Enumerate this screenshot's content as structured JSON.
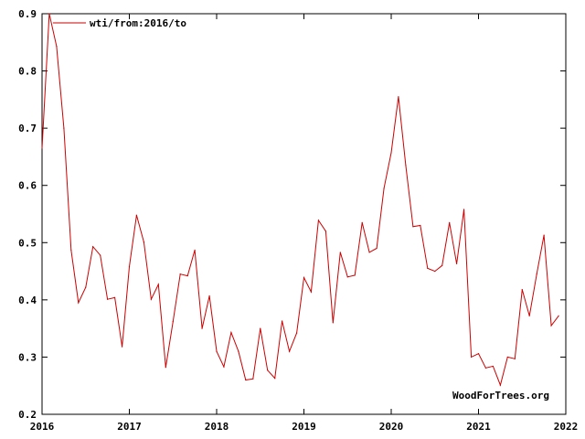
{
  "chart_data": {
    "type": "line",
    "title": "",
    "xlabel": "",
    "ylabel": "",
    "xlim": [
      2016,
      2022
    ],
    "ylim": [
      0.2,
      0.9
    ],
    "x_ticks": [
      "2016",
      "2017",
      "2018",
      "2019",
      "2020",
      "2021",
      "2022"
    ],
    "y_ticks": [
      "0.2",
      "0.3",
      "0.4",
      "0.5",
      "0.6",
      "0.7",
      "0.8",
      "0.9"
    ],
    "legend_position": "top-left",
    "grid": false,
    "credit": "WoodForTrees.org",
    "series": [
      {
        "name": "wti/from:2016/to",
        "color": "#cc0000",
        "x": [
          2016.0,
          2016.083,
          2016.167,
          2016.25,
          2016.333,
          2016.417,
          2016.5,
          2016.583,
          2016.667,
          2016.75,
          2016.833,
          2016.917,
          2017.0,
          2017.083,
          2017.167,
          2017.25,
          2017.333,
          2017.417,
          2017.5,
          2017.583,
          2017.667,
          2017.75,
          2017.833,
          2017.917,
          2018.0,
          2018.083,
          2018.167,
          2018.25,
          2018.333,
          2018.417,
          2018.5,
          2018.583,
          2018.667,
          2018.75,
          2018.833,
          2018.917,
          2019.0,
          2019.083,
          2019.167,
          2019.25,
          2019.333,
          2019.417,
          2019.5,
          2019.583,
          2019.667,
          2019.75,
          2019.833,
          2019.917,
          2020.0,
          2020.083,
          2020.167,
          2020.25,
          2020.333,
          2020.417,
          2020.5,
          2020.583,
          2020.667,
          2020.75,
          2020.833,
          2020.917,
          2021.0,
          2021.083,
          2021.167,
          2021.25,
          2021.333,
          2021.417,
          2021.5,
          2021.583,
          2021.667,
          2021.75,
          2021.833,
          2021.917
        ],
        "y": [
          0.665,
          0.9,
          0.843,
          0.7,
          0.487,
          0.395,
          0.422,
          0.493,
          0.478,
          0.401,
          0.404,
          0.318,
          0.458,
          0.548,
          0.501,
          0.401,
          0.427,
          0.282,
          0.362,
          0.445,
          0.442,
          0.487,
          0.35,
          0.407,
          0.31,
          0.283,
          0.343,
          0.31,
          0.26,
          0.262,
          0.35,
          0.277,
          0.263,
          0.363,
          0.31,
          0.342,
          0.439,
          0.414,
          0.539,
          0.52,
          0.36,
          0.483,
          0.44,
          0.443,
          0.535,
          0.483,
          0.49,
          0.595,
          0.657,
          0.755,
          0.635,
          0.528,
          0.53,
          0.455,
          0.45,
          0.46,
          0.535,
          0.463,
          0.558,
          0.3,
          0.306,
          0.281,
          0.284,
          0.251,
          0.3,
          0.297,
          0.418,
          0.372,
          0.445,
          0.513,
          0.355,
          0.372
        ]
      }
    ]
  }
}
